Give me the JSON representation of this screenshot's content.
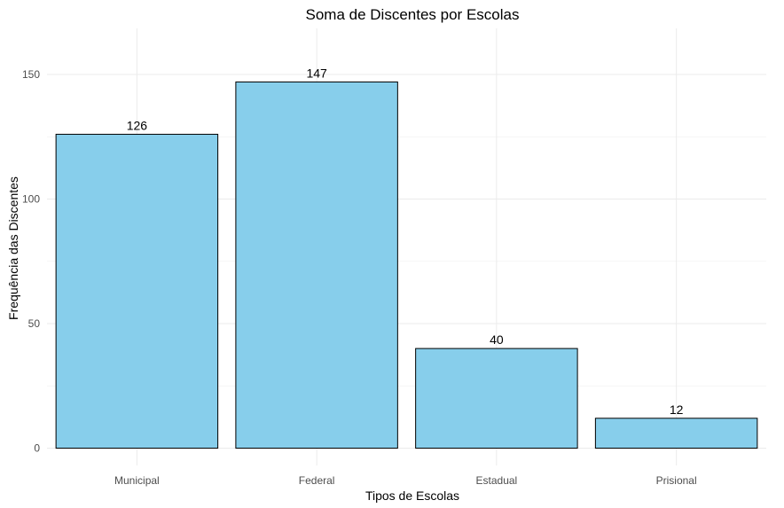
{
  "chart_data": {
    "type": "bar",
    "title": "Soma de Discentes por Escolas",
    "xlabel": "Tipos de Escolas",
    "ylabel": "Frequência das Discentes",
    "categories": [
      "Municipal",
      "Federal",
      "Estadual",
      "Prisional"
    ],
    "values": [
      126,
      147,
      40,
      12
    ],
    "data_labels": [
      "126",
      "147",
      "40",
      "12"
    ],
    "ylim": [
      0,
      165
    ],
    "y_ticks": [
      0,
      50,
      100,
      150
    ],
    "y_tick_labels": [
      "0",
      "50",
      "100",
      "150"
    ],
    "grid": true,
    "legend": "none",
    "bar_color": "#87CEEB",
    "bar_border_color": "#000000"
  }
}
